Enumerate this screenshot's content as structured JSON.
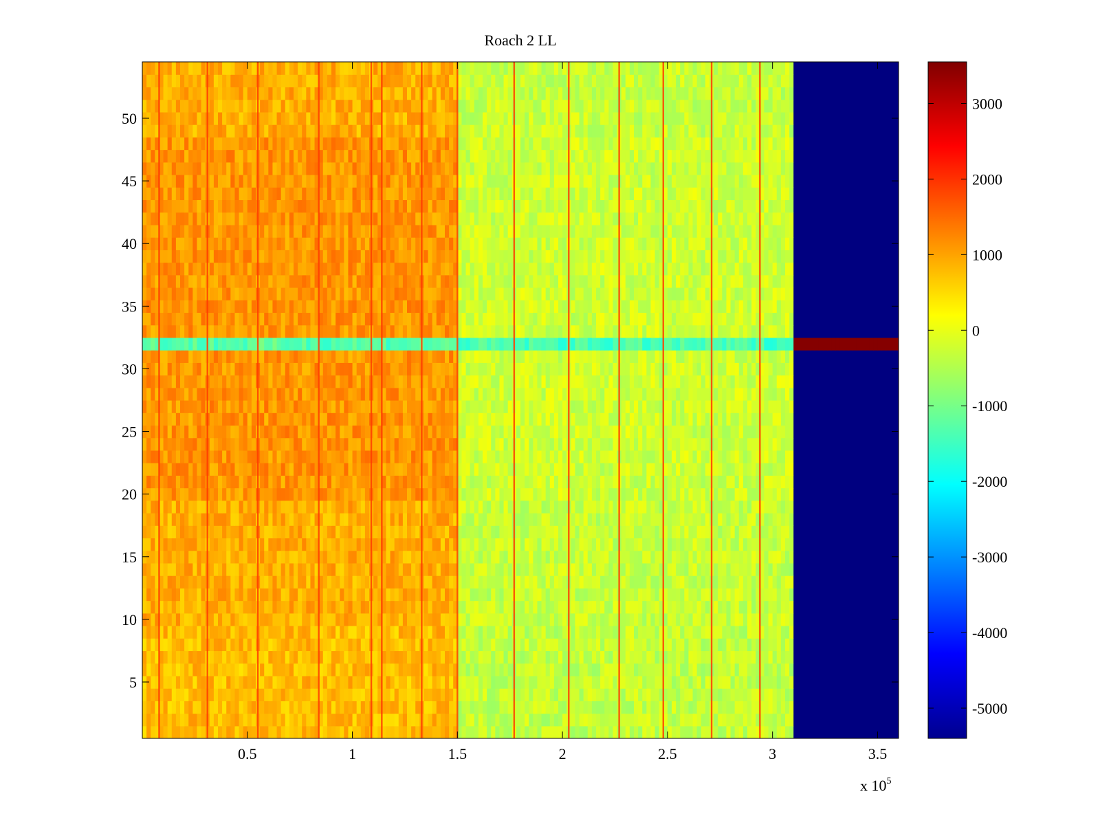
{
  "chart_data": {
    "type": "heatmap",
    "title": "Roach 2 LL",
    "xlabel": "",
    "ylabel": "",
    "x_multiplier_label": "x 10",
    "x_multiplier_exponent": "5",
    "xlim": [
      0,
      3.6
    ],
    "ylim": [
      0.5,
      54.5
    ],
    "x_ticks": [
      0.5,
      1,
      1.5,
      2,
      2.5,
      3,
      3.5
    ],
    "x_tick_labels": [
      "0.5",
      "1",
      "1.5",
      "2",
      "2.5",
      "3",
      "3.5"
    ],
    "y_ticks": [
      5,
      10,
      15,
      20,
      25,
      30,
      35,
      40,
      45,
      50
    ],
    "y_tick_labels": [
      "5",
      "10",
      "15",
      "20",
      "25",
      "30",
      "35",
      "40",
      "45",
      "50"
    ],
    "colorbar": {
      "colormap": "jet",
      "range": [
        -5400,
        3550
      ],
      "ticks": [
        -5000,
        -4000,
        -3000,
        -2000,
        -1000,
        0,
        1000,
        2000,
        3000
      ],
      "tick_labels": [
        "-5000",
        "-4000",
        "-3000",
        "-2000",
        "-1000",
        "0",
        "1000",
        "2000",
        "3000"
      ]
    },
    "regions": [
      {
        "name": "early-channels",
        "x_range": [
          0,
          1.5
        ],
        "y_range": [
          0.5,
          54.5
        ],
        "approx_value": 900
      },
      {
        "name": "middle-channels",
        "x_range": [
          1.5,
          3.1
        ],
        "y_range": [
          0.5,
          54.5
        ],
        "approx_value": -300
      },
      {
        "name": "flagged-channels",
        "x_range": [
          3.1,
          3.6
        ],
        "y_range": [
          0.5,
          54.5
        ],
        "approx_value": -5400
      },
      {
        "name": "row-32",
        "x_range": [
          0,
          3.1
        ],
        "y_range": [
          31.5,
          32.5
        ],
        "approx_value": -1500
      },
      {
        "name": "row-32-tail",
        "x_range": [
          3.1,
          3.6
        ],
        "y_range": [
          31.5,
          32.5
        ],
        "approx_value": 3500
      }
    ],
    "stripe_x_positions": [
      0.08,
      0.31,
      0.55,
      0.84,
      1.09,
      1.14,
      1.33,
      1.5,
      1.77,
      2.03,
      2.27,
      2.48,
      2.71,
      2.94
    ]
  }
}
